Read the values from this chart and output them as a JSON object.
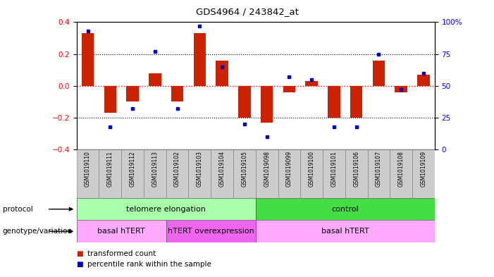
{
  "title": "GDS4964 / 243842_at",
  "samples": [
    "GSM1019110",
    "GSM1019111",
    "GSM1019112",
    "GSM1019113",
    "GSM1019102",
    "GSM1019103",
    "GSM1019104",
    "GSM1019105",
    "GSM1019098",
    "GSM1019099",
    "GSM1019100",
    "GSM1019101",
    "GSM1019106",
    "GSM1019107",
    "GSM1019108",
    "GSM1019109"
  ],
  "bar_values": [
    0.33,
    -0.17,
    -0.1,
    0.08,
    -0.1,
    0.33,
    0.16,
    -0.2,
    -0.23,
    -0.04,
    0.03,
    -0.2,
    -0.2,
    0.16,
    -0.04,
    0.07
  ],
  "percentile_values": [
    93,
    18,
    32,
    77,
    32,
    97,
    65,
    20,
    10,
    57,
    55,
    18,
    18,
    75,
    47,
    60
  ],
  "bar_color": "#cc2200",
  "dot_color": "#0000cc",
  "ylim_left": [
    -0.4,
    0.4
  ],
  "ylim_right": [
    0,
    100
  ],
  "yticks_left": [
    -0.4,
    -0.2,
    0.0,
    0.2,
    0.4
  ],
  "yticks_right": [
    0,
    25,
    50,
    75,
    100
  ],
  "ytick_labels_right": [
    "0",
    "25",
    "50",
    "75",
    "100%"
  ],
  "protocol_groups": [
    {
      "label": "telomere elongation",
      "start": 0,
      "end": 8,
      "color": "#aaffaa"
    },
    {
      "label": "control",
      "start": 8,
      "end": 16,
      "color": "#44dd44"
    }
  ],
  "genotype_groups": [
    {
      "label": "basal hTERT",
      "start": 0,
      "end": 4,
      "color": "#ffaaff"
    },
    {
      "label": "hTERT overexpression",
      "start": 4,
      "end": 8,
      "color": "#ee66ee"
    },
    {
      "label": "basal hTERT",
      "start": 8,
      "end": 16,
      "color": "#ffaaff"
    }
  ],
  "legend_items": [
    {
      "label": "transformed count",
      "color": "#cc2200"
    },
    {
      "label": "percentile rank within the sample",
      "color": "#0000cc"
    }
  ],
  "protocol_label": "protocol",
  "genotype_label": "genotype/variation",
  "tick_area_color": "#cccccc"
}
